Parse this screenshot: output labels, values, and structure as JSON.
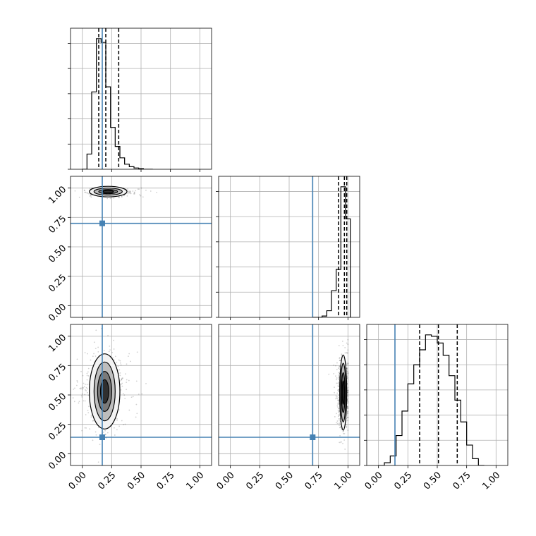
{
  "chart_data": {
    "type": "corner",
    "parameters": [
      {
        "name": "",
        "truth": 0.17,
        "quantiles": [
          0.14,
          0.2,
          0.31
        ]
      },
      {
        "name": "",
        "truth": 0.7,
        "quantiles": [
          0.92,
          0.97,
          0.99
        ]
      },
      {
        "name": "",
        "truth": 0.14,
        "quantiles": [
          0.35,
          0.51,
          0.67
        ]
      }
    ],
    "axis_range": [
      -0.1,
      1.1
    ],
    "ticks": [
      0.0,
      0.25,
      0.5,
      0.75,
      1.0
    ],
    "tick_labels": [
      "0.00",
      "0.25",
      "0.50",
      "0.75",
      "1.00"
    ],
    "histograms": [
      {
        "param": 0,
        "bin_edges": [
          0.0,
          0.04,
          0.08,
          0.12,
          0.16,
          0.2,
          0.24,
          0.28,
          0.32,
          0.36,
          0.4,
          0.44,
          0.48,
          0.52,
          0.56,
          0.6
        ],
        "counts": [
          0.0,
          0.12,
          0.61,
          1.03,
          1.0,
          0.65,
          0.33,
          0.18,
          0.09,
          0.04,
          0.02,
          0.01,
          0.005,
          0.0,
          0.0
        ]
      },
      {
        "param": 1,
        "bin_edges": [
          0.7,
          0.74,
          0.78,
          0.82,
          0.86,
          0.9,
          0.94,
          0.98,
          1.02
        ],
        "counts": [
          0.0,
          0.0,
          0.01,
          0.05,
          0.2,
          0.36,
          0.98,
          0.74
        ]
      },
      {
        "param": 2,
        "bin_edges": [
          0.0,
          0.05,
          0.1,
          0.15,
          0.2,
          0.25,
          0.3,
          0.35,
          0.4,
          0.45,
          0.5,
          0.55,
          0.6,
          0.65,
          0.7,
          0.75,
          0.8,
          0.85,
          0.9
        ],
        "counts": [
          0.0,
          0.02,
          0.07,
          0.22,
          0.4,
          0.6,
          0.74,
          0.85,
          0.96,
          0.95,
          0.9,
          0.81,
          0.66,
          0.48,
          0.32,
          0.15,
          0.05,
          0.0
        ]
      }
    ],
    "scatter_panels": [
      {
        "x_param": 0,
        "y_param": 1,
        "center": [
          0.22,
          0.97
        ],
        "spread": [
          0.07,
          0.02
        ],
        "contour_levels": [
          [
            0.045,
            0.01
          ],
          [
            0.08,
            0.018
          ],
          [
            0.12,
            0.03
          ],
          [
            0.16,
            0.045
          ]
        ]
      },
      {
        "x_param": 0,
        "y_param": 2,
        "center": [
          0.19,
          0.53
        ],
        "spread": [
          0.07,
          0.16
        ],
        "contour_levels": [
          [
            0.035,
            0.1
          ],
          [
            0.06,
            0.17
          ],
          [
            0.09,
            0.25
          ],
          [
            0.13,
            0.32
          ]
        ]
      },
      {
        "x_param": 1,
        "y_param": 2,
        "center": [
          0.96,
          0.52
        ],
        "spread": [
          0.02,
          0.16
        ],
        "contour_levels": [
          [
            0.008,
            0.1
          ],
          [
            0.014,
            0.17
          ],
          [
            0.022,
            0.25
          ],
          [
            0.03,
            0.32
          ]
        ]
      }
    ],
    "grid": true,
    "colors": {
      "truth": "#4682b4",
      "hist": "#000000",
      "grid": "#b0b0b0",
      "scatter": "#000000"
    }
  }
}
